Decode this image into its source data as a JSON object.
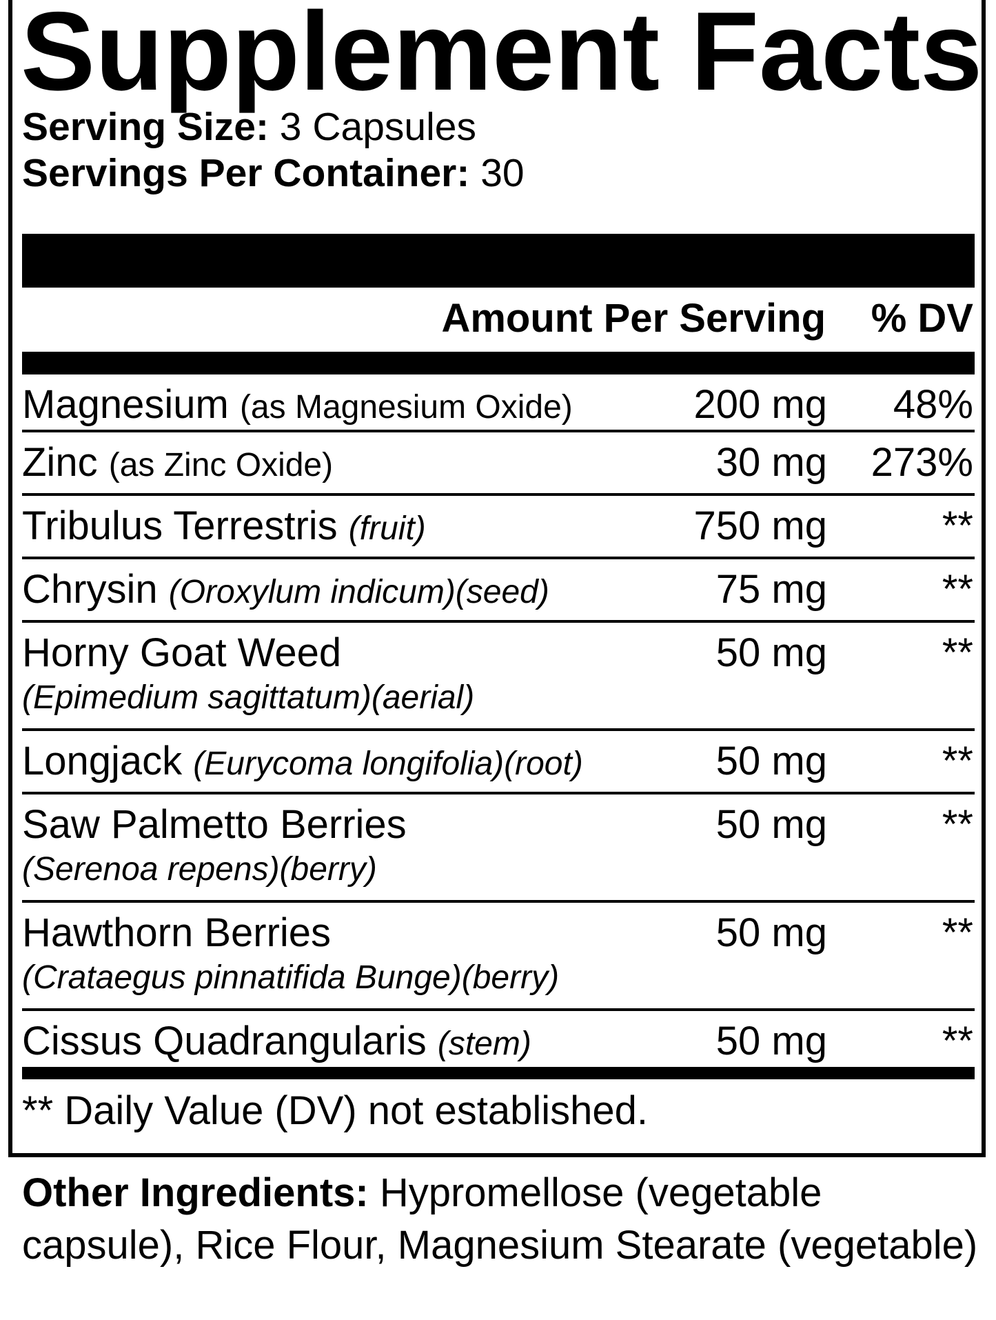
{
  "title": "Supplement Facts",
  "serving_size": {
    "label": "Serving Size:",
    "value": "3 Capsules"
  },
  "servings_per_container": {
    "label": "Servings Per Container:",
    "value": "30"
  },
  "header": {
    "amount": "Amount Per Serving",
    "dv": "% DV"
  },
  "rows": [
    {
      "name": "Magnesium",
      "note": "(as Magnesium Oxide)",
      "amount": "200 mg",
      "dv": "48%"
    },
    {
      "name": "Zinc",
      "note": "(as Zinc Oxide)",
      "amount": "30 mg",
      "dv": "273%"
    },
    {
      "name": "Tribulus Terrestris",
      "italic": "(fruit)",
      "amount": "750 mg",
      "dv": "**"
    },
    {
      "name": "Chrysin",
      "italic": "(Oroxylum indicum)(seed)",
      "amount": "75 mg",
      "dv": "**"
    },
    {
      "name": "Horny Goat Weed",
      "line2": "(Epimedium sagittatum)(aerial)",
      "amount": "50 mg",
      "dv": "**"
    },
    {
      "name": "Longjack",
      "italic": "(Eurycoma longifolia)(root)",
      "amount": "50 mg",
      "dv": "**"
    },
    {
      "name": "Saw Palmetto Berries",
      "line2": "(Serenoa repens)(berry)",
      "amount": "50 mg",
      "dv": "**"
    },
    {
      "name": "Hawthorn Berries",
      "line2": "(Crataegus pinnatifida Bunge)(berry)",
      "amount": "50 mg",
      "dv": "**"
    },
    {
      "name": "Cissus Quadrangularis",
      "italic": "(stem)",
      "amount": "50 mg",
      "dv": "**"
    }
  ],
  "footnote": "** Daily Value (DV) not established.",
  "other_ingredients": {
    "label": "Other Ingredients:",
    "value": "Hypromellose (vegetable capsule), Rice Flour, Magnesium Stearate (vegetable)"
  }
}
